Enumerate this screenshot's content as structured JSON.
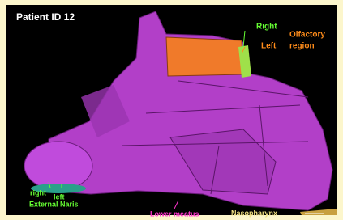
{
  "title": "Patient ID 12",
  "labels": {
    "right_top": "Right",
    "left_top": "Left",
    "olfactory": [
      "Olfactory",
      "region"
    ],
    "right_bottom": "right",
    "left_bottom": "left",
    "external_naris": "External Naris",
    "lower_meatus": "Lower meatus",
    "nasopharynx": "Nasopharynx"
  }
}
